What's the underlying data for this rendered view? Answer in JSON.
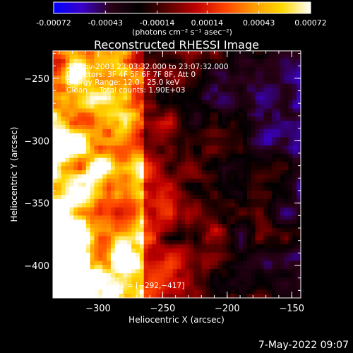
{
  "colorbar": {
    "tick_labels": [
      "-0.00072",
      "-0.00043",
      "-0.00014",
      "0.00014",
      "0.00043",
      "0.00072"
    ],
    "tick_values": [
      -0.00072,
      -0.00043,
      -0.00014,
      0.00014,
      0.00043,
      0.00072
    ],
    "range": [
      -0.00072,
      0.00072
    ],
    "units_label": "(photons cm⁻² s⁻¹ asec⁻²)",
    "colormap": [
      "#0000ff",
      "#3a00c8",
      "#2a0016",
      "#000000",
      "#5a0000",
      "#c00000",
      "#ff4400",
      "#ff9a00",
      "#ffd800",
      "#ffffff"
    ]
  },
  "chart_data": {
    "type": "heatmap",
    "title": "Reconstructed RHESSI Image",
    "xlabel": "Heliocentric X (arcsec)",
    "ylabel": "Heliocentric Y (arcsec)",
    "xlim": [
      -335,
      -143
    ],
    "ylim": [
      -426,
      -228
    ],
    "xticks": [
      -300,
      -250,
      -200,
      -150
    ],
    "yticks": [
      -400,
      -350,
      -300,
      -250
    ],
    "xtick_labels": [
      "−300",
      "−250",
      "−200",
      "−150"
    ],
    "ytick_labels": [
      "−400",
      "−350",
      "−300",
      "−250"
    ],
    "annotations": [
      "23-Nov-2003 23:03:32.000 to 23:07:32.000",
      "Detectors: 3F 4F 5F 6F 7F 8F, Att 0",
      "Energy Range: 12.0 - 25.0 keV",
      "Clean     Total counts: 1.90E+03"
    ],
    "peak_label": "Position of Peak = [−292,−417]",
    "peak": [
      -292,
      -417
    ]
  },
  "footer": {
    "date": "7-May-2022 09:07"
  },
  "colors": {
    "background": "#000000",
    "text": "#ffffff"
  }
}
